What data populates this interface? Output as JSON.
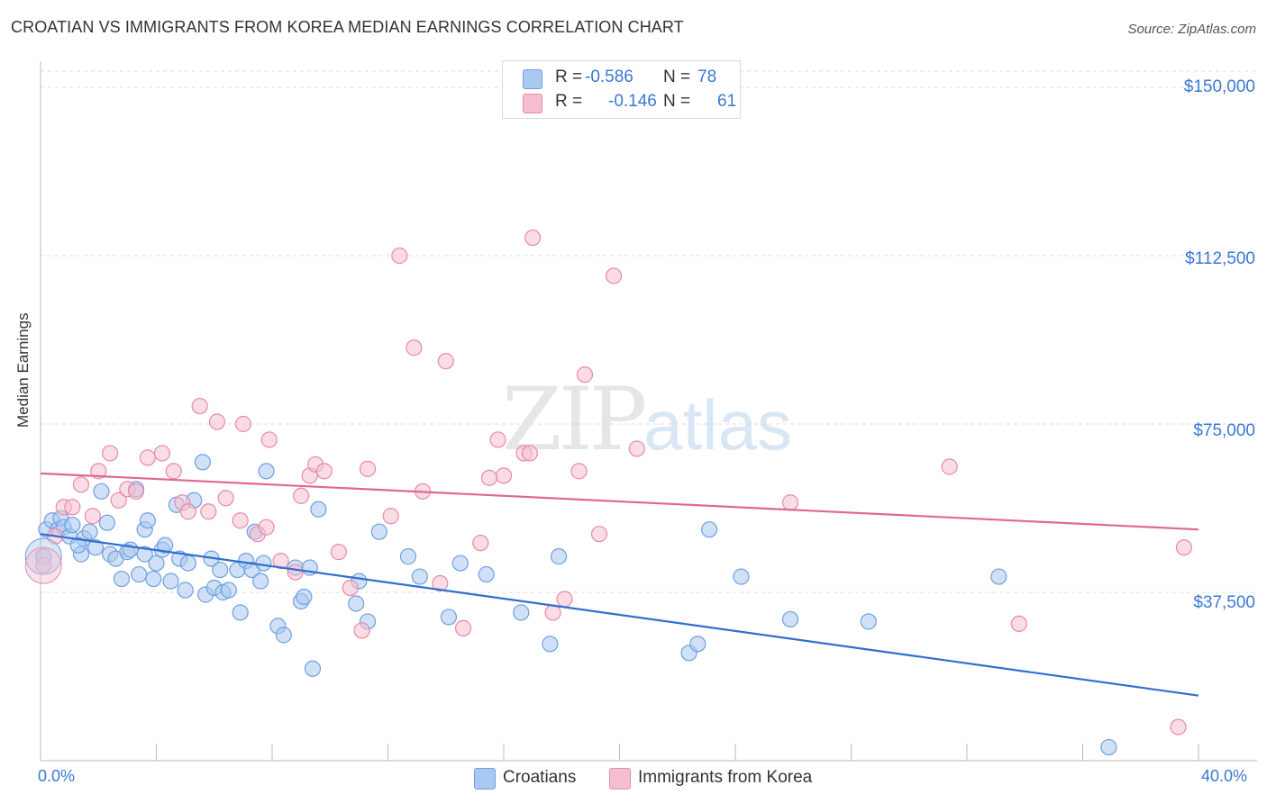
{
  "title": "CROATIAN VS IMMIGRANTS FROM KOREA MEDIAN EARNINGS CORRELATION CHART",
  "source": "Source: ZipAtlas.com",
  "watermark": {
    "zip": "ZIP",
    "atlas": "atlas"
  },
  "legend": {
    "series1": {
      "r_label": "R =",
      "r_value": "-0.586",
      "n_label": "N =",
      "n_value": "78"
    },
    "series2": {
      "r_label": "R =",
      "r_value": "-0.146",
      "n_label": "N =",
      "n_value": "61"
    }
  },
  "colors": {
    "blue_fill": "#a9c9f0",
    "blue_stroke": "#6f9fdf",
    "blue_line": "#2f6fd0",
    "pink_fill": "#f6bfd0",
    "pink_stroke": "#e88aa9",
    "pink_line": "#e06890",
    "accent_text": "#3a78d4",
    "grid": "#dcdcdc"
  },
  "chart_data": {
    "type": "scatter",
    "title": "CROATIAN VS IMMIGRANTS FROM KOREA MEDIAN EARNINGS CORRELATION CHART",
    "xlabel": "",
    "ylabel": "Median Earnings",
    "xlim": [
      0,
      40
    ],
    "ylim": [
      0,
      150000
    ],
    "x_tick_labels": [
      "0.0%",
      "40.0%"
    ],
    "y_tick_labels": [
      "$37,500",
      "$75,000",
      "$112,500",
      "$150,000"
    ],
    "y_ticks": [
      37500,
      75000,
      112500,
      150000
    ],
    "grid": true,
    "legend_position": "top-center",
    "series": [
      {
        "name": "Croatians",
        "r": -0.586,
        "n": 78,
        "trend": [
          [
            0,
            50500
          ],
          [
            40,
            14500
          ]
        ],
        "points": [
          [
            0.2,
            51500
          ],
          [
            0.4,
            53500
          ],
          [
            0.6,
            51500
          ],
          [
            0.7,
            54000
          ],
          [
            0.8,
            52000
          ],
          [
            1.0,
            50000
          ],
          [
            1.1,
            52500
          ],
          [
            1.4,
            46000
          ],
          [
            1.5,
            49500
          ],
          [
            1.7,
            51000
          ],
          [
            1.9,
            47500
          ],
          [
            2.1,
            60000
          ],
          [
            2.3,
            53000
          ],
          [
            2.4,
            46000
          ],
          [
            2.6,
            45000
          ],
          [
            2.8,
            40500
          ],
          [
            3.0,
            46500
          ],
          [
            3.1,
            47000
          ],
          [
            3.3,
            60500
          ],
          [
            3.4,
            41500
          ],
          [
            3.6,
            51500
          ],
          [
            3.7,
            53500
          ],
          [
            3.9,
            40500
          ],
          [
            4.0,
            44000
          ],
          [
            4.2,
            47000
          ],
          [
            4.3,
            48000
          ],
          [
            4.5,
            40000
          ],
          [
            4.7,
            57000
          ],
          [
            4.8,
            45000
          ],
          [
            5.0,
            38000
          ],
          [
            5.1,
            44000
          ],
          [
            5.3,
            58000
          ],
          [
            5.6,
            66500
          ],
          [
            5.7,
            37000
          ],
          [
            5.9,
            45000
          ],
          [
            6.0,
            38500
          ],
          [
            6.2,
            42500
          ],
          [
            6.3,
            37500
          ],
          [
            6.5,
            38000
          ],
          [
            6.8,
            42500
          ],
          [
            6.9,
            33000
          ],
          [
            7.1,
            44500
          ],
          [
            7.3,
            42500
          ],
          [
            7.4,
            51000
          ],
          [
            7.6,
            40000
          ],
          [
            7.7,
            44000
          ],
          [
            7.8,
            64500
          ],
          [
            8.2,
            30000
          ],
          [
            8.4,
            28000
          ],
          [
            8.8,
            43000
          ],
          [
            9.0,
            35500
          ],
          [
            9.1,
            36500
          ],
          [
            9.3,
            43000
          ],
          [
            9.4,
            20500
          ],
          [
            9.6,
            56000
          ],
          [
            10.9,
            35000
          ],
          [
            11.0,
            40000
          ],
          [
            11.3,
            31000
          ],
          [
            11.7,
            51000
          ],
          [
            12.7,
            45500
          ],
          [
            13.1,
            41000
          ],
          [
            14.1,
            32000
          ],
          [
            14.5,
            44000
          ],
          [
            15.4,
            41500
          ],
          [
            16.6,
            33000
          ],
          [
            17.6,
            26000
          ],
          [
            17.9,
            45500
          ],
          [
            22.4,
            24000
          ],
          [
            22.7,
            26000
          ],
          [
            23.1,
            51500
          ],
          [
            24.2,
            41000
          ],
          [
            25.9,
            31500
          ],
          [
            28.6,
            31000
          ],
          [
            33.1,
            41000
          ],
          [
            36.9,
            3000
          ],
          [
            0.1,
            45500
          ],
          [
            3.6,
            46000
          ],
          [
            1.3,
            48000
          ]
        ]
      },
      {
        "name": "Immigrants from Korea",
        "r": -0.146,
        "n": 61,
        "trend": [
          [
            0,
            64000
          ],
          [
            40,
            51500
          ]
        ],
        "points": [
          [
            0.1,
            43500
          ],
          [
            0.5,
            50000
          ],
          [
            0.8,
            56500
          ],
          [
            1.1,
            56500
          ],
          [
            1.4,
            61500
          ],
          [
            1.8,
            54500
          ],
          [
            2.0,
            64500
          ],
          [
            2.4,
            68500
          ],
          [
            2.7,
            58000
          ],
          [
            3.0,
            60500
          ],
          [
            3.3,
            60000
          ],
          [
            3.7,
            67500
          ],
          [
            4.2,
            68500
          ],
          [
            4.6,
            64500
          ],
          [
            4.9,
            57500
          ],
          [
            5.1,
            55500
          ],
          [
            5.5,
            79000
          ],
          [
            5.8,
            55500
          ],
          [
            6.1,
            75500
          ],
          [
            6.4,
            58500
          ],
          [
            6.9,
            53500
          ],
          [
            7.0,
            75000
          ],
          [
            7.5,
            50500
          ],
          [
            7.8,
            52000
          ],
          [
            7.9,
            71500
          ],
          [
            8.3,
            44500
          ],
          [
            8.8,
            42000
          ],
          [
            9.0,
            59000
          ],
          [
            9.3,
            63500
          ],
          [
            9.5,
            66000
          ],
          [
            9.8,
            64500
          ],
          [
            10.3,
            46500
          ],
          [
            10.7,
            38500
          ],
          [
            11.1,
            29000
          ],
          [
            11.3,
            65000
          ],
          [
            12.1,
            54500
          ],
          [
            12.4,
            112500
          ],
          [
            12.9,
            92000
          ],
          [
            13.2,
            60000
          ],
          [
            13.8,
            39500
          ],
          [
            14.0,
            89000
          ],
          [
            14.6,
            29500
          ],
          [
            15.2,
            48500
          ],
          [
            15.5,
            63000
          ],
          [
            15.8,
            71500
          ],
          [
            16.0,
            63500
          ],
          [
            16.7,
            68500
          ],
          [
            16.9,
            68500
          ],
          [
            17.0,
            116500
          ],
          [
            17.7,
            33000
          ],
          [
            18.1,
            36000
          ],
          [
            18.6,
            64500
          ],
          [
            18.8,
            86000
          ],
          [
            19.3,
            50500
          ],
          [
            19.8,
            108000
          ],
          [
            20.6,
            69500
          ],
          [
            25.9,
            57500
          ],
          [
            31.4,
            65500
          ],
          [
            33.8,
            30500
          ],
          [
            39.5,
            47500
          ],
          [
            39.3,
            7500
          ]
        ]
      }
    ]
  },
  "bottom_legend": {
    "series1": "Croatians",
    "series2": "Immigrants from Korea"
  }
}
